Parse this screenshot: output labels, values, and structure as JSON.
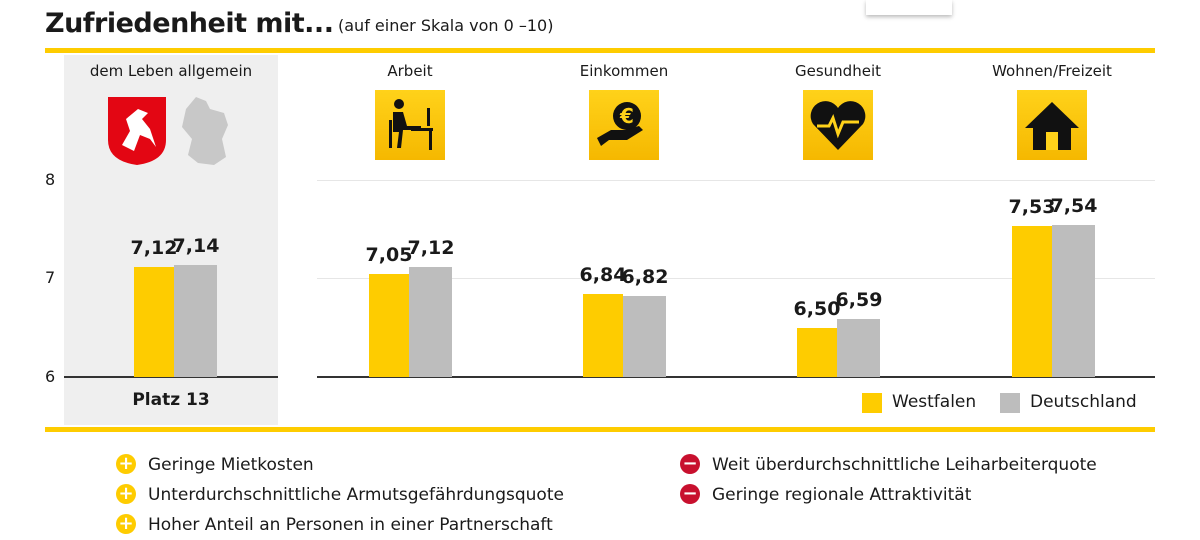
{
  "title": "Zufriedenheit mit...",
  "subtitle": "(auf einer Skala von 0 –10)",
  "colors": {
    "westfalen": "#fecc00",
    "deutschland": "#bdbdbd",
    "accent": "#fecc00",
    "positive": "#fecc00",
    "negative": "#c8102e"
  },
  "chart_data": {
    "type": "bar",
    "categories": [
      "dem Leben allgemein",
      "Arbeit",
      "Einkommen",
      "Gesundheit",
      "Wohnen/Freizeit"
    ],
    "category_icons": [
      "coat-of-arms-and-germany-map",
      "desk-worker-icon",
      "euro-hand-icon",
      "heart-pulse-icon",
      "house-icon"
    ],
    "series": [
      {
        "name": "Westfalen",
        "values": [
          7.12,
          7.05,
          6.84,
          6.5,
          7.53
        ],
        "labels": [
          "7,12",
          "7,05",
          "6,84",
          "6,50",
          "7,53"
        ]
      },
      {
        "name": "Deutschland",
        "values": [
          7.14,
          7.12,
          6.82,
          6.59,
          7.54
        ],
        "labels": [
          "7,14",
          "7,12",
          "6,82",
          "6,59",
          "7,54"
        ]
      }
    ],
    "yticks": [
      "8",
      "7",
      "6"
    ],
    "ylim": [
      6,
      8
    ],
    "grid": true,
    "legend": "bottom-right",
    "rank_label": "Platz 13"
  },
  "pros": [
    "Geringe Mietkosten",
    "Unterdurchschnittliche Armutsgefährdungsquote",
    "Hoher Anteil an Personen in einer Partnerschaft"
  ],
  "cons": [
    "Weit überdurchschnittliche Leiharbeiterquote",
    "Geringe regionale Attraktivität"
  ]
}
